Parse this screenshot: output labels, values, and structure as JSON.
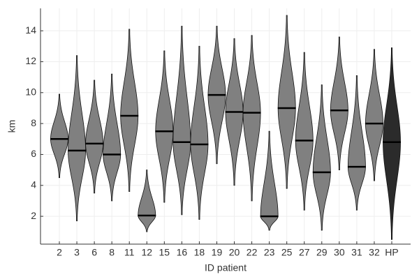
{
  "chart_data": {
    "type": "violin",
    "x_label": "ID patient",
    "y_label": "km",
    "categories": [
      "2",
      "3",
      "6",
      "8",
      "11",
      "12",
      "15",
      "16",
      "18",
      "19",
      "20",
      "22",
      "23",
      "25",
      "27",
      "29",
      "30",
      "31",
      "32",
      "HP"
    ],
    "median": [
      7.0,
      6.25,
      6.7,
      6.0,
      8.5,
      2.05,
      7.5,
      6.8,
      6.65,
      9.85,
      8.75,
      8.7,
      2.0,
      9.0,
      6.9,
      4.85,
      8.85,
      5.2,
      8.0,
      6.8
    ],
    "min": [
      4.5,
      1.7,
      3.5,
      3.0,
      3.6,
      1.0,
      2.9,
      2.1,
      1.8,
      5.4,
      4.0,
      3.0,
      1.1,
      3.8,
      2.4,
      1.1,
      5.0,
      2.4,
      4.3,
      0.5
    ],
    "max": [
      9.9,
      12.4,
      10.8,
      11.2,
      14.1,
      5.0,
      12.7,
      14.3,
      13.0,
      14.3,
      13.5,
      13.7,
      7.5,
      15.0,
      12.6,
      10.5,
      13.6,
      11.1,
      12.8,
      12.9
    ],
    "colors": [
      "#808080",
      "#808080",
      "#808080",
      "#808080",
      "#808080",
      "#808080",
      "#808080",
      "#808080",
      "#808080",
      "#808080",
      "#808080",
      "#808080",
      "#808080",
      "#808080",
      "#808080",
      "#808080",
      "#808080",
      "#808080",
      "#808080",
      "#2b2b2b"
    ],
    "ylim": [
      0.2,
      15.45
    ],
    "yticks": [
      2,
      4,
      6,
      8,
      10,
      12,
      14
    ],
    "grid": true
  }
}
